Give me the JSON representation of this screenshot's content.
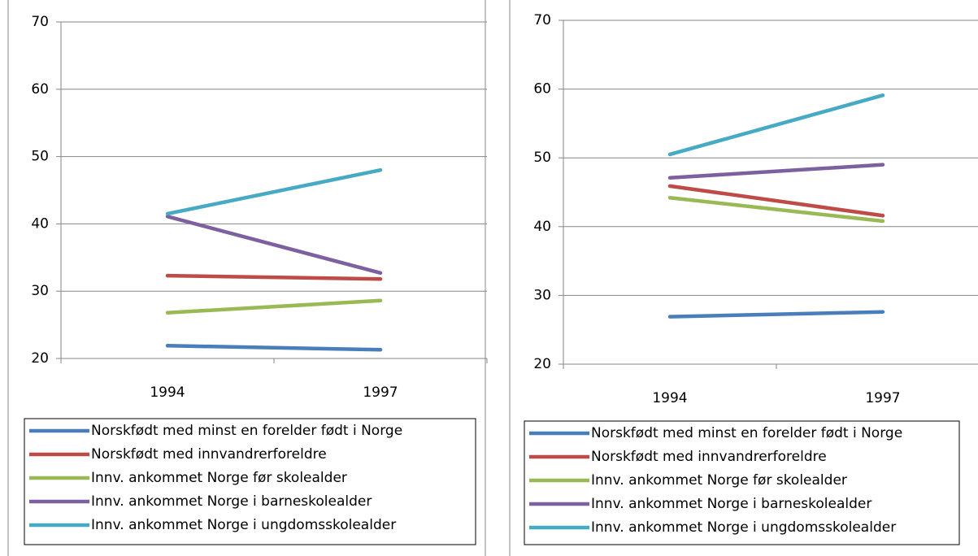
{
  "chart_data": [
    {
      "type": "line",
      "categories": [
        "1994",
        "1997"
      ],
      "ylim": [
        20,
        70
      ],
      "yticks": [
        20,
        30,
        40,
        50,
        60,
        70
      ],
      "grid": true,
      "series": [
        {
          "name": "Norskfødt med minst en forelder født i Norge",
          "color": "#4a7ebb",
          "values": [
            21.9,
            21.3
          ]
        },
        {
          "name": "Norskfødt med innvandrerforeldre",
          "color": "#be4b48",
          "values": [
            32.3,
            31.8
          ]
        },
        {
          "name": "Innv. ankommet Norge før skolealder",
          "color": "#98b954",
          "values": [
            26.8,
            28.6
          ]
        },
        {
          "name": "Innv. ankommet Norge i barneskolealder",
          "color": "#7d60a0",
          "values": [
            41.1,
            32.7
          ]
        },
        {
          "name": "Innv. ankommet Norge i ungdomsskolealder",
          "color": "#46aac5",
          "values": [
            41.5,
            48.0
          ]
        }
      ]
    },
    {
      "type": "line",
      "categories": [
        "1994",
        "1997"
      ],
      "ylim": [
        20,
        70
      ],
      "yticks": [
        20,
        30,
        40,
        50,
        60,
        70
      ],
      "grid": true,
      "series": [
        {
          "name": "Norskfødt med minst en forelder født i Norge",
          "color": "#4a7ebb",
          "values": [
            26.9,
            27.6
          ]
        },
        {
          "name": "Norskfødt med innvandrerforeldre",
          "color": "#be4b48",
          "values": [
            45.9,
            41.6
          ]
        },
        {
          "name": "Innv. ankommet Norge før skolealder",
          "color": "#98b954",
          "values": [
            44.2,
            40.8
          ]
        },
        {
          "name": "Innv. ankommet Norge i barneskolealder",
          "color": "#7d60a0",
          "values": [
            47.1,
            49.0
          ]
        },
        {
          "name": "Innv. ankommet Norge i ungdomsskolealder",
          "color": "#46aac5",
          "values": [
            50.5,
            59.1
          ]
        }
      ]
    }
  ]
}
